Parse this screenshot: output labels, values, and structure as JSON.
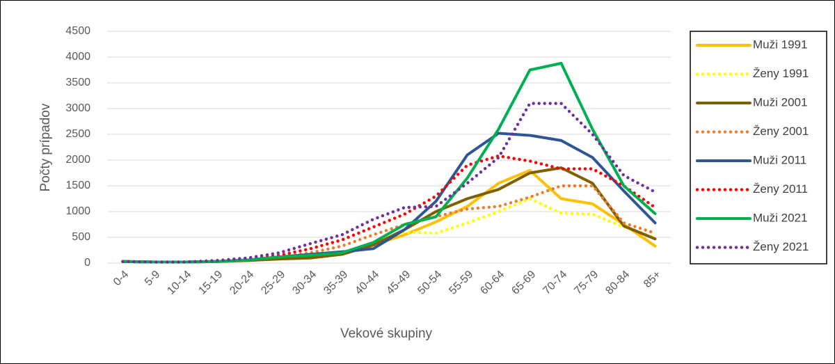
{
  "chart_data": {
    "type": "line",
    "y_label": "Počty prípadov",
    "x_label": "Vekové skupiny",
    "categories": [
      "0-4",
      "5-9",
      "10-14",
      "15-19",
      "20-24",
      "25-29",
      "30-34",
      "35-39",
      "40-44",
      "45-49",
      "50-54",
      "55-59",
      "60-64",
      "65-69",
      "70-74",
      "75-79",
      "80-84",
      "85+"
    ],
    "series": [
      {
        "name": "Muži 1991",
        "color": "#ffc000",
        "style": "solid",
        "values": [
          30,
          20,
          20,
          30,
          50,
          80,
          100,
          170,
          350,
          550,
          800,
          1100,
          1550,
          1800,
          1250,
          1150,
          750,
          330
        ]
      },
      {
        "name": "Ženy 1991",
        "color": "#ffff00",
        "style": "dotted",
        "values": [
          30,
          20,
          20,
          30,
          50,
          80,
          120,
          200,
          400,
          600,
          580,
          780,
          1000,
          1250,
          970,
          950,
          700,
          500
        ]
      },
      {
        "name": "Muži 2001",
        "color": "#7f6000",
        "style": "solid",
        "values": [
          30,
          20,
          20,
          30,
          50,
          80,
          100,
          170,
          350,
          650,
          1000,
          1250,
          1430,
          1750,
          1850,
          1550,
          720,
          470
        ]
      },
      {
        "name": "Ženy 2001",
        "color": "#ed7d31",
        "style": "dotted",
        "values": [
          30,
          20,
          20,
          40,
          70,
          120,
          200,
          330,
          550,
          750,
          900,
          1050,
          1100,
          1280,
          1500,
          1500,
          780,
          580
        ]
      },
      {
        "name": "Muži 2011",
        "color": "#2f5597",
        "style": "solid",
        "values": [
          30,
          20,
          20,
          30,
          60,
          120,
          170,
          220,
          280,
          650,
          1200,
          2100,
          2520,
          2480,
          2380,
          2050,
          1400,
          780
        ]
      },
      {
        "name": "Ženy 2011",
        "color": "#ff0000",
        "style": "dotted",
        "values": [
          30,
          20,
          20,
          40,
          80,
          150,
          280,
          450,
          700,
          950,
          1300,
          1900,
          2080,
          1980,
          1830,
          1830,
          1500,
          1080
        ]
      },
      {
        "name": "Muži 2021",
        "color": "#00b050",
        "style": "solid",
        "values": [
          30,
          20,
          20,
          30,
          60,
          120,
          150,
          200,
          400,
          750,
          900,
          1650,
          2600,
          3750,
          3880,
          2600,
          1500,
          960
        ]
      },
      {
        "name": "Ženy 2021",
        "color": "#7030a0",
        "style": "dotted",
        "values": [
          30,
          20,
          20,
          50,
          100,
          200,
          380,
          550,
          850,
          1080,
          1100,
          1550,
          2050,
          3100,
          3100,
          2500,
          1700,
          1380
        ]
      }
    ],
    "ylim": [
      0,
      4500
    ],
    "yticks": [
      0,
      500,
      1000,
      1500,
      2000,
      2500,
      3000,
      3500,
      4000,
      4500
    ],
    "grid": true,
    "legend": "right"
  }
}
